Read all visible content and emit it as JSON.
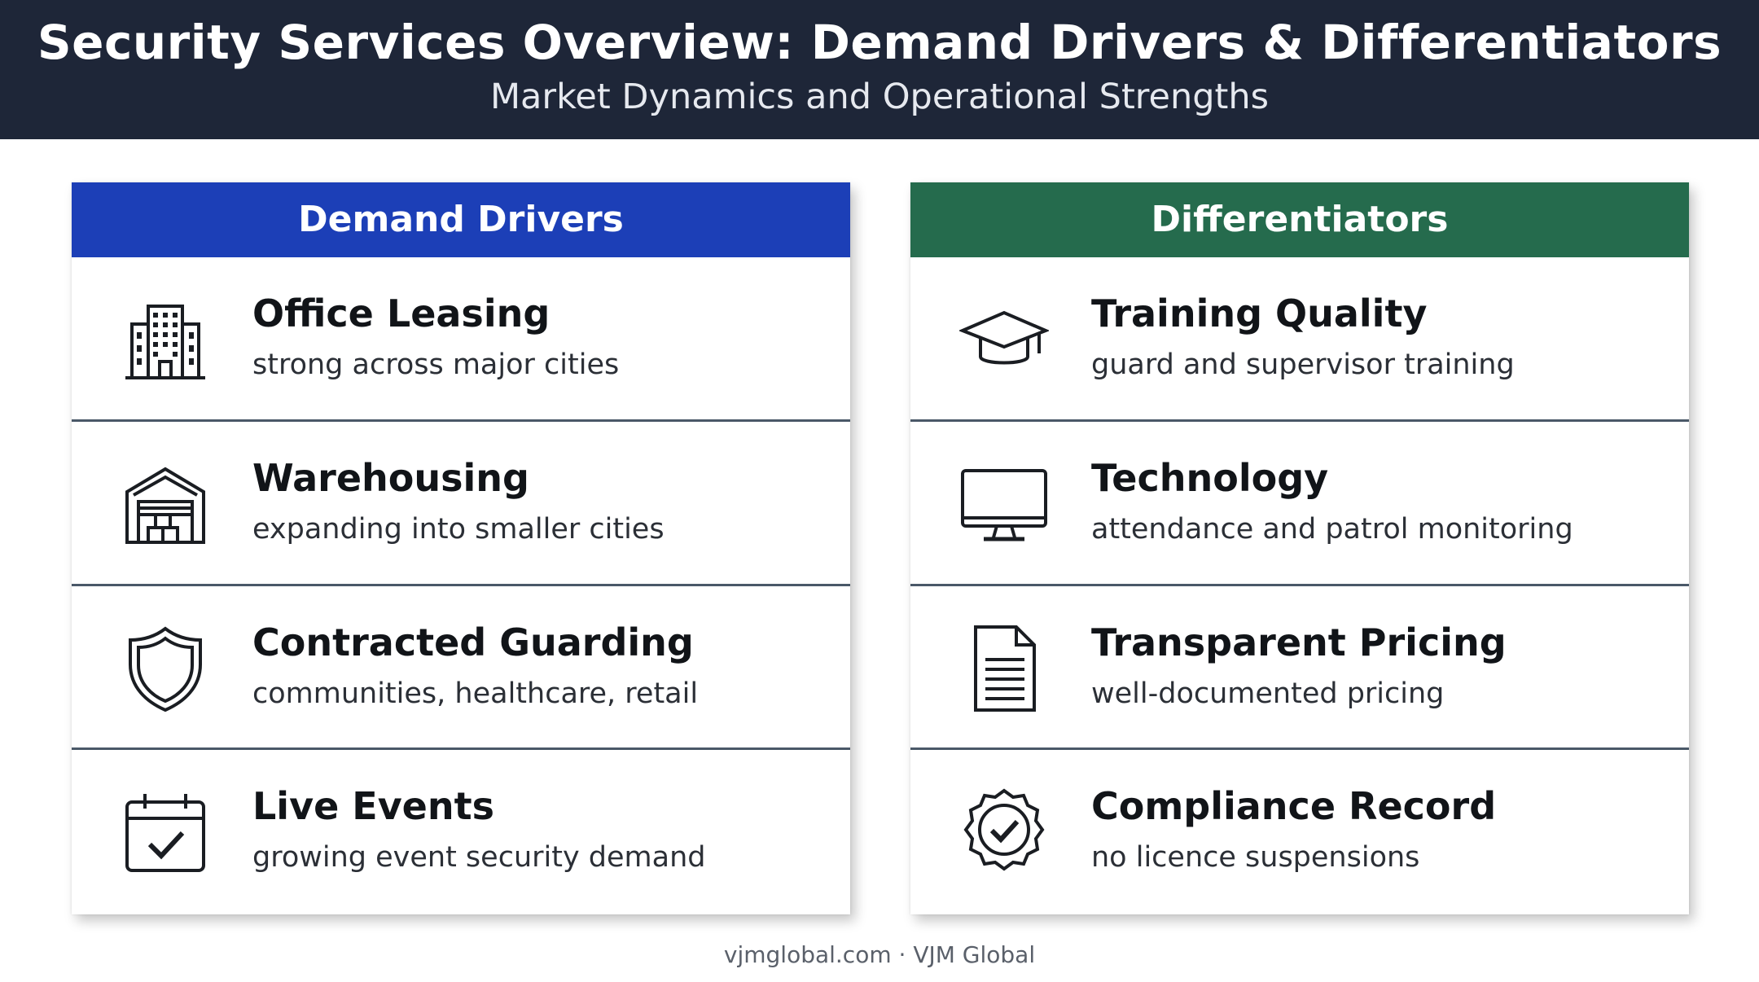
{
  "header": {
    "title": "Security Services Overview: Demand Drivers & Differentiators",
    "subtitle": "Market Dynamics and Operational Strengths"
  },
  "demand_drivers": {
    "heading": "Demand Drivers",
    "color": "#1c3fb7",
    "items": [
      {
        "title": "Office Leasing",
        "desc": "strong across major cities",
        "icon": "office-building-icon"
      },
      {
        "title": "Warehousing",
        "desc": "expanding into smaller cities",
        "icon": "warehouse-icon"
      },
      {
        "title": "Contracted Guarding",
        "desc": "communities, healthcare, retail",
        "icon": "shield-icon"
      },
      {
        "title": "Live Events",
        "desc": "growing event security demand",
        "icon": "calendar-check-icon"
      }
    ]
  },
  "differentiators": {
    "heading": "Differentiators",
    "color": "#256b4d",
    "items": [
      {
        "title": "Training Quality",
        "desc": "guard and supervisor training",
        "icon": "graduation-cap-icon"
      },
      {
        "title": "Technology",
        "desc": "attendance and patrol monitoring",
        "icon": "monitor-icon"
      },
      {
        "title": "Transparent Pricing",
        "desc": "well-documented pricing",
        "icon": "document-icon"
      },
      {
        "title": "Compliance Record",
        "desc": "no licence suspensions",
        "icon": "certified-badge-icon"
      }
    ]
  },
  "footer": {
    "text": "vjmglobal.com · VJM Global"
  }
}
